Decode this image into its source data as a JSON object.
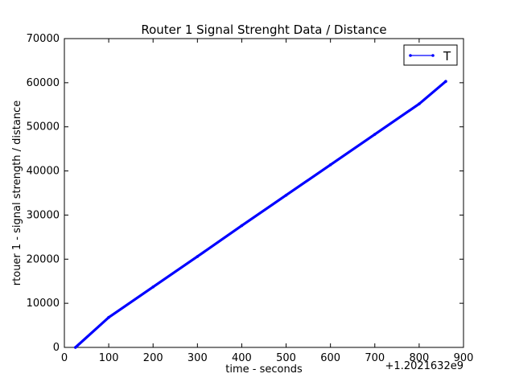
{
  "chart_data": {
    "type": "line",
    "title": "Router 1 Signal Strenght Data / Distance",
    "xlabel": "time - seconds",
    "ylabel": "rtouer 1 - signal strength / distance",
    "x_offset_label": "+1.2021632e9",
    "xlim": [
      0,
      900
    ],
    "ylim": [
      0,
      70000
    ],
    "x_ticks": [
      0,
      100,
      200,
      300,
      400,
      500,
      600,
      700,
      800,
      900
    ],
    "y_ticks": [
      0,
      10000,
      20000,
      30000,
      40000,
      50000,
      60000,
      70000
    ],
    "x_tick_labels": [
      "0",
      "100",
      "200",
      "300",
      "400",
      "500",
      "600",
      "700",
      "800",
      "900"
    ],
    "y_tick_labels": [
      "0",
      "10000",
      "20000",
      "30000",
      "40000",
      "50000",
      "60000",
      "70000"
    ],
    "grid": false,
    "legend_position": "top-right",
    "series": [
      {
        "name": "T",
        "color": "#0000ff",
        "marker": "dot",
        "x": [
          25,
          100,
          200,
          300,
          400,
          500,
          600,
          700,
          800,
          860
        ],
        "y": [
          0,
          6800,
          13700,
          20600,
          27600,
          34500,
          41400,
          48300,
          55200,
          60300
        ]
      }
    ]
  }
}
